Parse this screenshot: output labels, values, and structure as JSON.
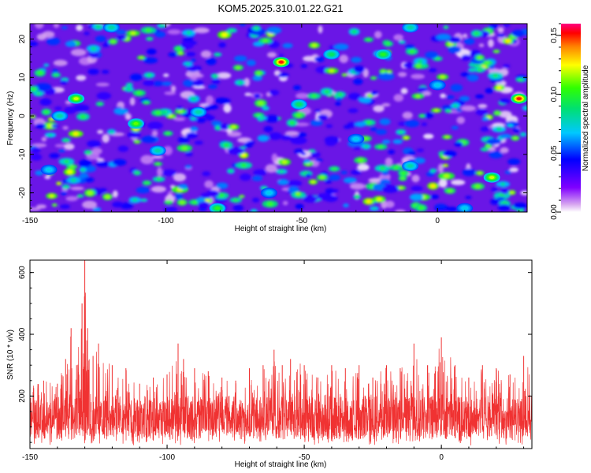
{
  "chart_data": [
    {
      "type": "heatmap",
      "title": "KOM5.2025.310.01.22.G21",
      "xlabel": "Height of straight line (km)",
      "ylabel": "Frequency (Hz)",
      "xlim": [
        -150,
        33
      ],
      "ylim": [
        -25,
        24
      ],
      "xticks": [
        -150,
        -100,
        -50,
        0
      ],
      "yticks": [
        20,
        10,
        0,
        -10,
        -20
      ],
      "colorbar": {
        "label": "Normalized spectral amplitude",
        "range": [
          0,
          0.16
        ],
        "ticks": [
          0.0,
          0.05,
          0.1,
          0.15
        ],
        "tick_labels": [
          "0.00",
          "0.05",
          "0.10",
          "0.15"
        ]
      },
      "hotspots": [
        {
          "x": -57.5,
          "y": 14,
          "value": 0.15
        },
        {
          "x": 30,
          "y": 4.5,
          "value": 0.15
        },
        {
          "x": -133,
          "y": 4.5,
          "value": 0.12
        },
        {
          "x": -111,
          "y": -2,
          "value": 0.11
        },
        {
          "x": 20,
          "y": -16,
          "value": 0.12
        },
        {
          "x": -39,
          "y": 16,
          "value": 0.09
        },
        {
          "x": -20,
          "y": 16,
          "value": 0.1
        },
        {
          "x": -51,
          "y": 3,
          "value": 0.09
        },
        {
          "x": -81,
          "y": -24,
          "value": 0.1
        },
        {
          "x": -139,
          "y": 0,
          "value": 0.08
        },
        {
          "x": -88,
          "y": 1,
          "value": 0.08
        },
        {
          "x": -10,
          "y": 23,
          "value": 0.08
        },
        {
          "x": -120,
          "y": 23,
          "value": 0.08
        },
        {
          "x": 0,
          "y": 8,
          "value": 0.07
        },
        {
          "x": -103,
          "y": -9,
          "value": 0.08
        },
        {
          "x": -10,
          "y": -13,
          "value": 0.08
        },
        {
          "x": -62,
          "y": -20,
          "value": 0.07
        },
        {
          "x": -143,
          "y": -14,
          "value": 0.07
        },
        {
          "x": 10,
          "y": -24,
          "value": 0.07
        },
        {
          "x": -30,
          "y": -6,
          "value": 0.07
        }
      ]
    },
    {
      "type": "line",
      "xlabel": "Height of straight line (km)",
      "ylabel": "SNR (10 * v/v)",
      "xlim": [
        -150,
        33
      ],
      "ylim": [
        30,
        640
      ],
      "xticks": [
        -150,
        -100,
        -50,
        0
      ],
      "yticks": [
        200,
        400,
        600
      ],
      "color": "#f03232",
      "series": [
        {
          "name": "SNR",
          "x": [
            -150,
            -145,
            -140,
            -137,
            -135,
            -133,
            -131,
            -130,
            -129,
            -127,
            -125,
            -120,
            -115,
            -110,
            -105,
            -100,
            -96,
            -94,
            -90,
            -85,
            -80,
            -75,
            -70,
            -65,
            -61,
            -58,
            -55,
            -50,
            -45,
            -40,
            -35,
            -30,
            -25,
            -20,
            -15,
            -10,
            -5,
            0,
            5,
            10,
            15,
            20,
            25,
            30,
            33
          ],
          "values": [
            230,
            250,
            240,
            320,
            420,
            300,
            500,
            640,
            420,
            330,
            370,
            300,
            290,
            240,
            260,
            270,
            370,
            320,
            290,
            280,
            260,
            250,
            290,
            300,
            350,
            300,
            320,
            300,
            260,
            300,
            290,
            300,
            260,
            300,
            290,
            370,
            300,
            390,
            300,
            260,
            300,
            290,
            270,
            330,
            310
          ]
        }
      ]
    }
  ]
}
